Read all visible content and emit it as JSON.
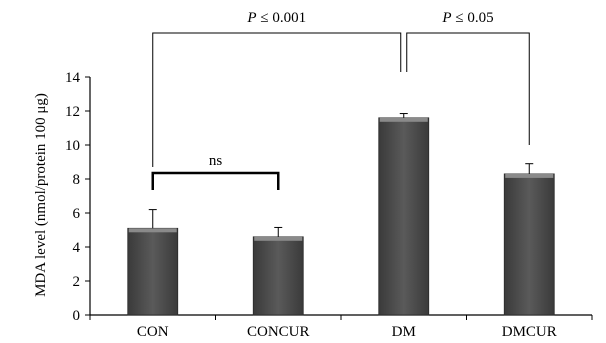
{
  "chart_data": {
    "type": "bar",
    "categories": [
      "CON",
      "CONCUR",
      "DM",
      "DMCUR"
    ],
    "values": [
      5.1,
      4.6,
      11.6,
      8.3
    ],
    "errors": [
      1.1,
      0.55,
      0.25,
      0.6
    ],
    "ylabel": "MDA level (nmol/protein 100 μg)",
    "ylim": [
      0,
      14
    ],
    "yticks": [
      0,
      2,
      4,
      6,
      8,
      10,
      12,
      14
    ],
    "grid": false,
    "legend": "none",
    "bar_color": "#4a4a4a",
    "annotations": [
      {
        "from": "CON",
        "to": "CONCUR",
        "p": "",
        "text": "ns"
      },
      {
        "from": "CON",
        "to": "DM",
        "p": "P",
        "text": "≤ 0.001"
      },
      {
        "from": "DM",
        "to": "DMCUR",
        "p": "P",
        "text": "≤ 0.05"
      }
    ]
  }
}
